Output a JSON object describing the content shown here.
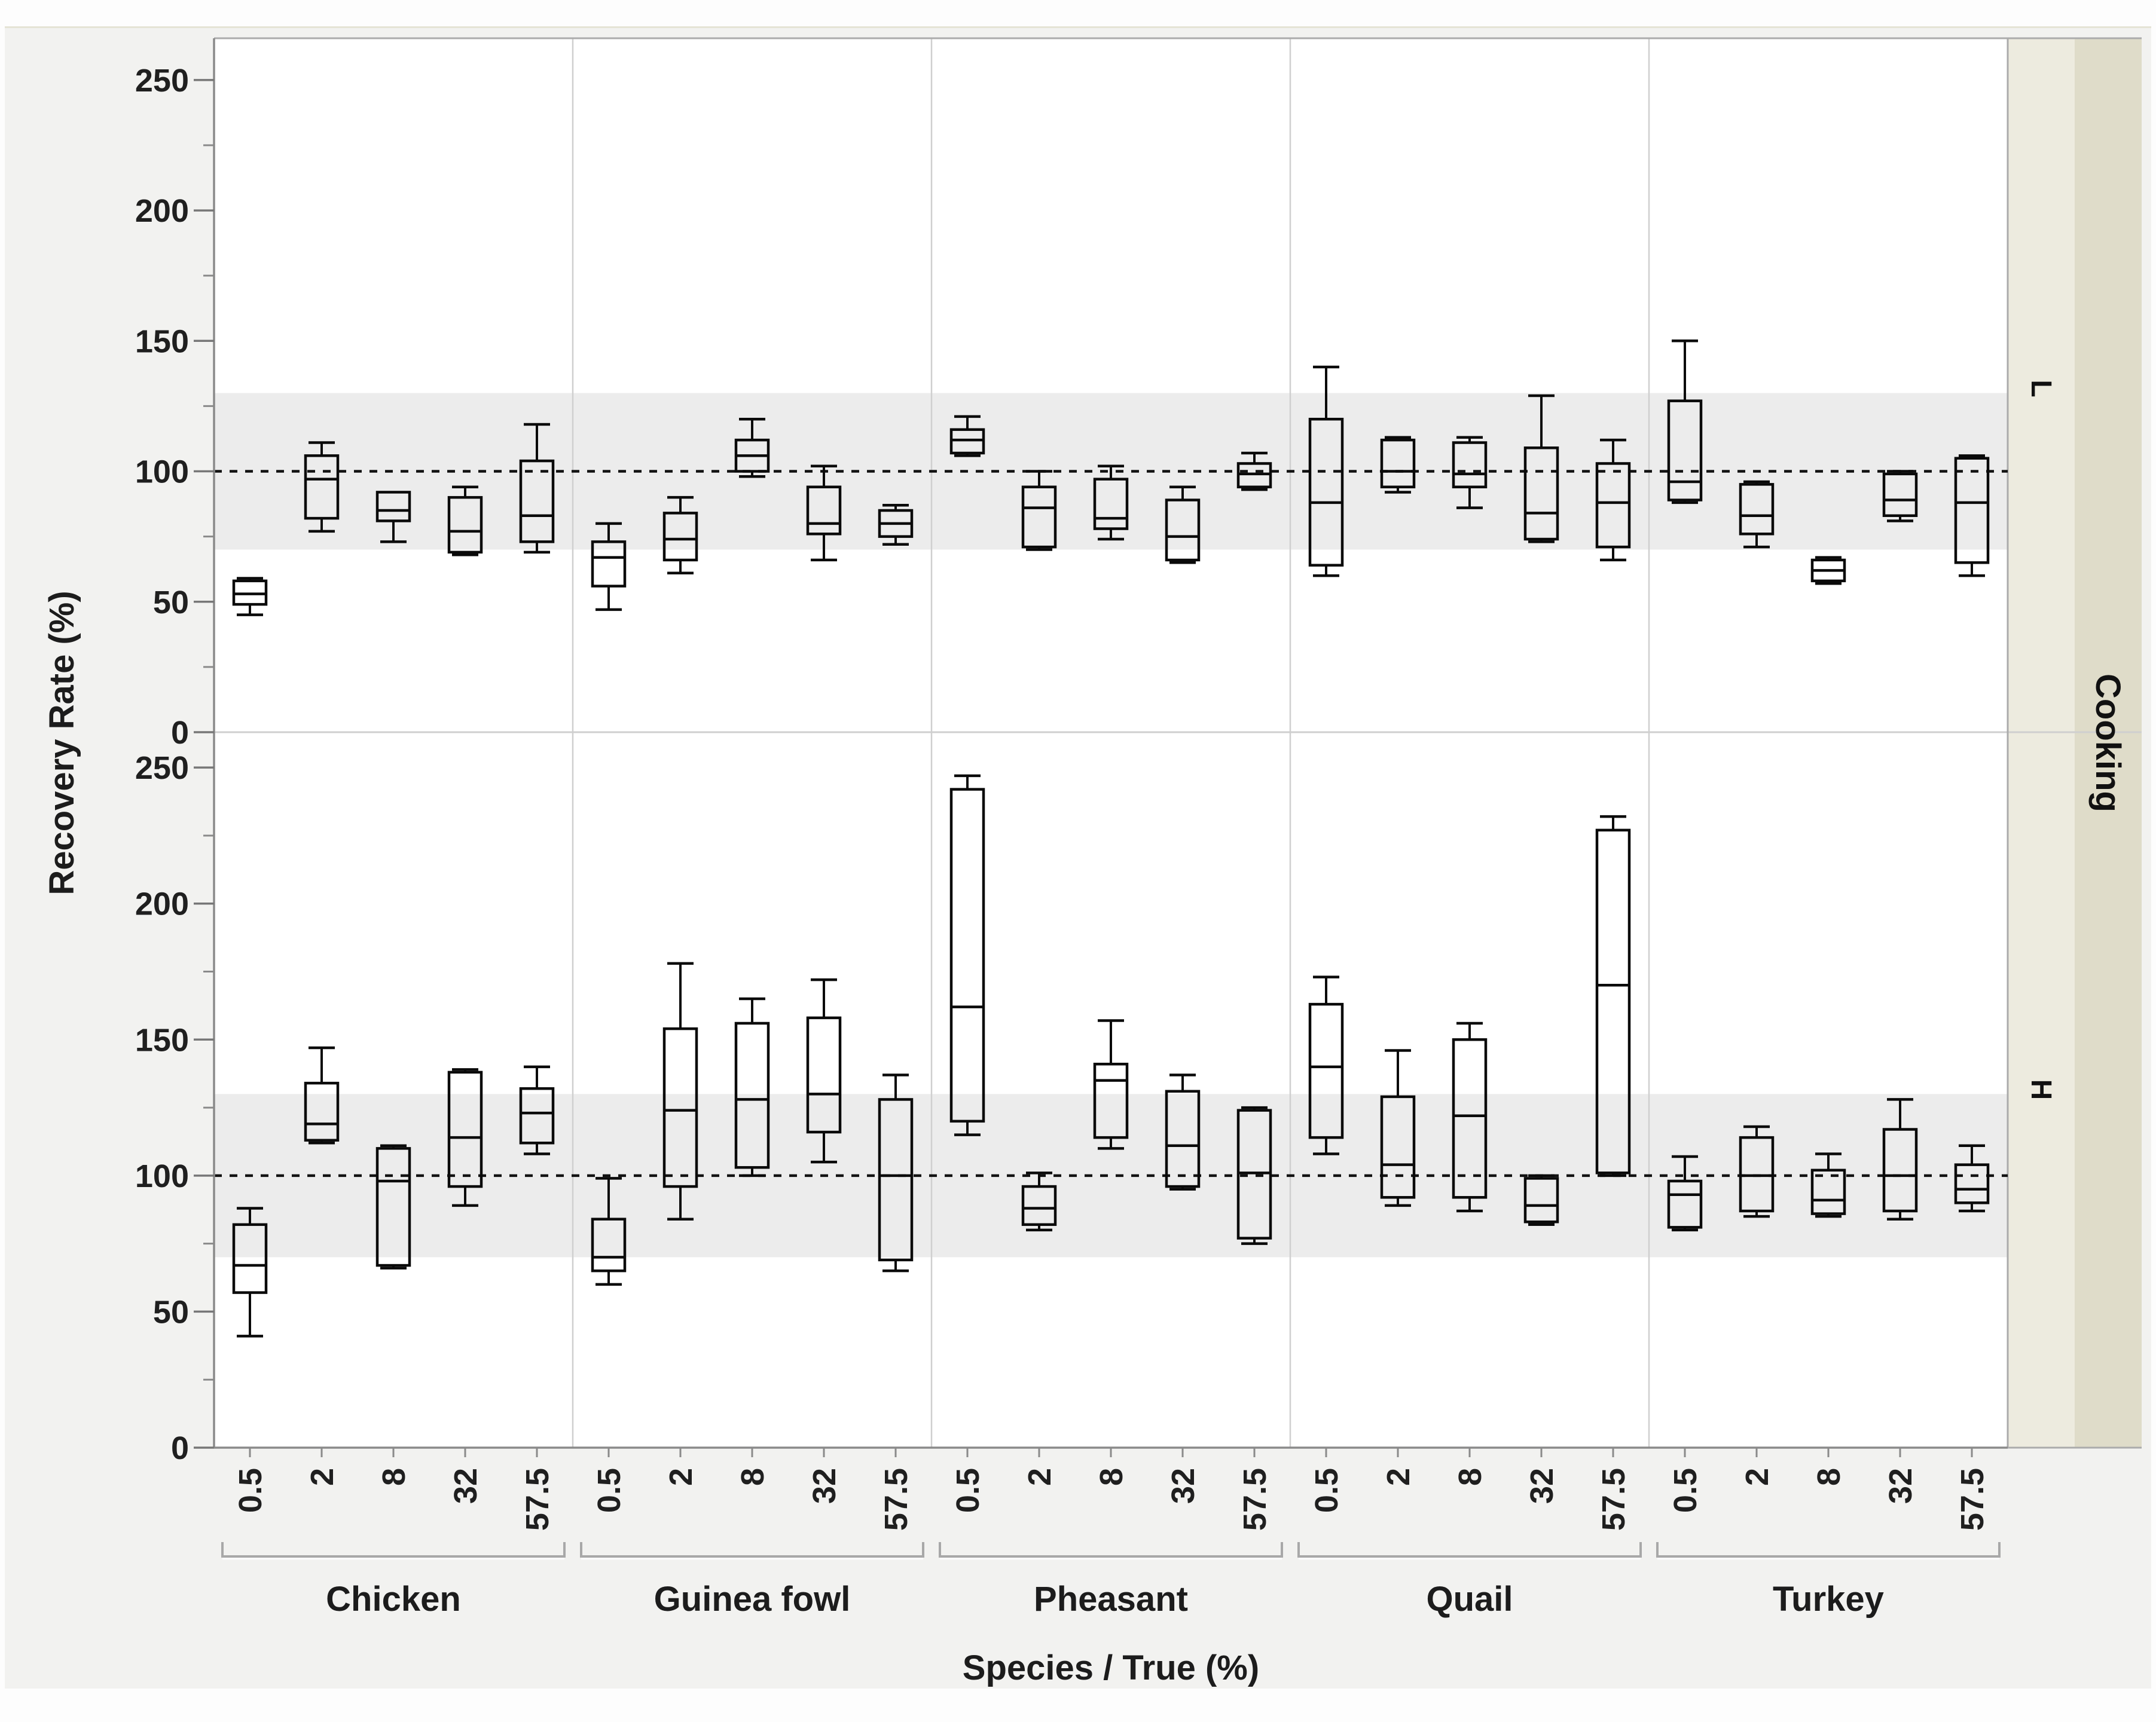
{
  "chart_data": {
    "type": "boxplot",
    "title": "",
    "xlabel": "Species / True (%)",
    "ylabel": "Recovery Rate (%)",
    "row_group_title": "Cooking",
    "legend_position": "none",
    "grid": "facet-separators-only",
    "species": [
      "Chicken",
      "Guinea fowl",
      "Pheasant",
      "Quail",
      "Turkey"
    ],
    "true_pct_levels": [
      "0.5",
      "2",
      "8",
      "32",
      "57.5"
    ],
    "y_ticks": [
      0,
      50,
      100,
      150,
      200,
      250
    ],
    "y_minor_ticks": [
      25,
      75,
      125,
      175,
      225
    ],
    "ylim_per_panel": [
      0,
      265
    ],
    "reference_line": 100,
    "reference_band": [
      70,
      130
    ],
    "box_values_order": [
      "whisker_low",
      "q1",
      "median",
      "q3",
      "whisker_high"
    ],
    "panels": [
      {
        "label": "L",
        "boxes": {
          "Chicken": [
            [
              45,
              49,
              53,
              58,
              59
            ],
            [
              77,
              82,
              97,
              106,
              111
            ],
            [
              73,
              81,
              85,
              92,
              92
            ],
            [
              68,
              69,
              77,
              90,
              94
            ],
            [
              69,
              73,
              83,
              104,
              118
            ]
          ],
          "Guinea fowl": [
            [
              47,
              56,
              67,
              73,
              80
            ],
            [
              61,
              66,
              74,
              84,
              90
            ],
            [
              98,
              100,
              106,
              112,
              120
            ],
            [
              66,
              76,
              80,
              94,
              102
            ],
            [
              72,
              75,
              80,
              85,
              87
            ]
          ],
          "Pheasant": [
            [
              106,
              107,
              112,
              116,
              121
            ],
            [
              70,
              71,
              86,
              94,
              100
            ],
            [
              74,
              78,
              82,
              97,
              102
            ],
            [
              65,
              66,
              75,
              89,
              94
            ],
            [
              93,
              94,
              99,
              103,
              107
            ]
          ],
          "Quail": [
            [
              60,
              64,
              88,
              120,
              140
            ],
            [
              92,
              94,
              100,
              112,
              113
            ],
            [
              86,
              94,
              99,
              111,
              113
            ],
            [
              73,
              74,
              84,
              109,
              129
            ],
            [
              66,
              71,
              88,
              103,
              112
            ]
          ],
          "Turkey": [
            [
              88,
              89,
              96,
              127,
              150
            ],
            [
              71,
              76,
              83,
              95,
              96
            ],
            [
              57,
              58,
              62,
              66,
              67
            ],
            [
              81,
              83,
              89,
              99,
              100
            ],
            [
              60,
              65,
              88,
              105,
              106
            ]
          ]
        }
      },
      {
        "label": "H",
        "boxes": {
          "Chicken": [
            [
              41,
              57,
              67,
              82,
              88
            ],
            [
              112,
              113,
              119,
              134,
              147
            ],
            [
              66,
              67,
              98,
              110,
              111
            ],
            [
              89,
              96,
              114,
              138,
              139
            ],
            [
              108,
              112,
              123,
              132,
              140
            ]
          ],
          "Guinea fowl": [
            [
              60,
              65,
              70,
              84,
              99
            ],
            [
              84,
              96,
              124,
              154,
              178
            ],
            [
              100,
              103,
              128,
              156,
              165
            ],
            [
              105,
              116,
              130,
              158,
              172
            ],
            [
              65,
              69,
              100,
              128,
              137
            ]
          ],
          "Pheasant": [
            [
              115,
              120,
              162,
              242,
              247
            ],
            [
              80,
              82,
              88,
              96,
              101
            ],
            [
              110,
              114,
              135,
              141,
              157
            ],
            [
              95,
              96,
              111,
              131,
              137
            ],
            [
              75,
              77,
              101,
              124,
              125
            ]
          ],
          "Quail": [
            [
              108,
              114,
              140,
              163,
              173
            ],
            [
              89,
              92,
              104,
              129,
              146
            ],
            [
              87,
              92,
              122,
              150,
              156
            ],
            [
              82,
              83,
              89,
              99,
              100
            ],
            [
              100,
              101,
              170,
              227,
              232
            ]
          ],
          "Turkey": [
            [
              80,
              81,
              93,
              98,
              107
            ],
            [
              85,
              87,
              100,
              114,
              118
            ],
            [
              85,
              86,
              91,
              102,
              108
            ],
            [
              84,
              87,
              100,
              117,
              128
            ],
            [
              87,
              90,
              95,
              104,
              111
            ]
          ]
        }
      }
    ],
    "colors": {
      "plot_bg": "#ffffff",
      "page_bg": "#f2f2f0",
      "band": "#ececec",
      "box_stroke": "#0a0a0a",
      "frame_light": "#ababab",
      "axis_dark": "#8a8a8a",
      "facet_line": "#cfcfcf",
      "divider": "#cfcfcf",
      "strip_inner": "#edebdf",
      "strip_outer": "#dfdcc9",
      "tick_text": "#1f1f1f",
      "bracket": "#a8a8a8"
    }
  }
}
